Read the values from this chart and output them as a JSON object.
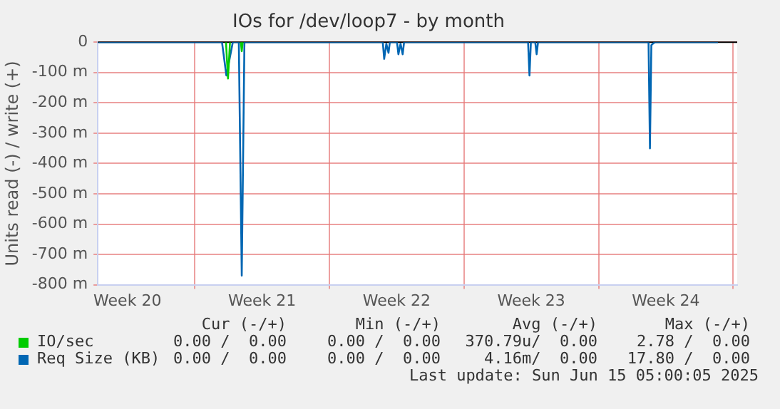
{
  "chart_data": {
    "type": "line",
    "title": "IOs for /dev/loop7 - by month",
    "ylabel": "Units read (-) / write (+)",
    "xlim": [
      "2025-05-13T23:00",
      "2025-06-16T05:00"
    ],
    "xticks": [
      {
        "value": "2025-05-15T12:00",
        "label": "Week 20"
      },
      {
        "value": "2025-05-19",
        "label": null
      },
      {
        "value": "2025-05-22T12:00",
        "label": "Week 21"
      },
      {
        "value": "2025-05-26",
        "label": null
      },
      {
        "value": "2025-05-29T12:00",
        "label": "Week 22"
      },
      {
        "value": "2025-06-02",
        "label": null
      },
      {
        "value": "2025-06-05T12:00",
        "label": "Week 23"
      },
      {
        "value": "2025-06-09",
        "label": null
      },
      {
        "value": "2025-06-12T12:00",
        "label": "Week 24"
      },
      {
        "value": "2025-06-16",
        "label": null
      }
    ],
    "ylim": [
      -800,
      0
    ],
    "yticks": [
      {
        "value": 0,
        "label": "0"
      },
      {
        "value": -100,
        "label": "-100 m"
      },
      {
        "value": -200,
        "label": "-200 m"
      },
      {
        "value": -300,
        "label": "-300 m"
      },
      {
        "value": -400,
        "label": "-400 m"
      },
      {
        "value": -500,
        "label": "-500 m"
      },
      {
        "value": -600,
        "label": "-600 m"
      },
      {
        "value": -700,
        "label": "-700 m"
      },
      {
        "value": -800,
        "label": "-800 m"
      }
    ],
    "grid": true,
    "legend": "bottom left",
    "marker": "none",
    "line_style": "solid",
    "series": [
      {
        "name": "IO/sec",
        "color": "#00cc00",
        "x": [
          "2025-05-20T15:00",
          "2025-05-20T17:30",
          "2025-05-20T20:00",
          "2025-05-21T04:00",
          "2025-05-21T09:30",
          "2025-05-21T10:40",
          "2025-05-21T11:50"
        ],
        "values": [
          0,
          -120,
          0,
          null,
          0,
          -30,
          0
        ]
      },
      {
        "name": "Req Size (KB)",
        "color": "#0066b3",
        "x": [
          "2025-05-14T00:00",
          "2025-05-20T10:00",
          "2025-05-20T15:30",
          "2025-05-20T23:30",
          "2025-05-21T07:00",
          "2025-05-21T10:40",
          "2025-05-21T14:00",
          "2025-05-28T18:40",
          "2025-05-28T20:25",
          "2025-05-28T23:05",
          "2025-05-29T01:50",
          "2025-05-29T03:30",
          "2025-05-29T12:25",
          "2025-05-29T14:10",
          "2025-05-29T16:50",
          "2025-05-29T19:30",
          "2025-05-29T21:15",
          "2025-06-05T08:00",
          "2025-06-05T09:45",
          "2025-06-05T11:30",
          "2025-06-05T16:55",
          "2025-06-05T18:40",
          "2025-06-05T20:25",
          "2025-06-11T14:20",
          "2025-06-11T16:05",
          "2025-06-11T17:50",
          "2025-06-11T19:40",
          "2025-06-11T22:20",
          "2025-06-15T05:00"
        ],
        "values": [
          0,
          0,
          -110,
          0,
          0,
          -770,
          0,
          0,
          -55,
          -5,
          -35,
          0,
          0,
          -40,
          -5,
          -40,
          0,
          0,
          -110,
          0,
          0,
          -40,
          0,
          0,
          -350,
          -10,
          -5,
          0,
          0
        ]
      }
    ],
    "annotations": [
      "Cur (-/+)",
      "Min (-/+)",
      "Avg (-/+)",
      "Max (-/+)",
      "0.00 /  0.00",
      "0.00 /  0.00",
      "370.79u/  0.00",
      "2.78 /  0.00",
      "0.00 /  0.00",
      "0.00 /  0.00",
      "4.16m/  0.00",
      "17.80 /  0.00",
      "Last update: Sun Jun 15 05:00:05 2025"
    ]
  }
}
